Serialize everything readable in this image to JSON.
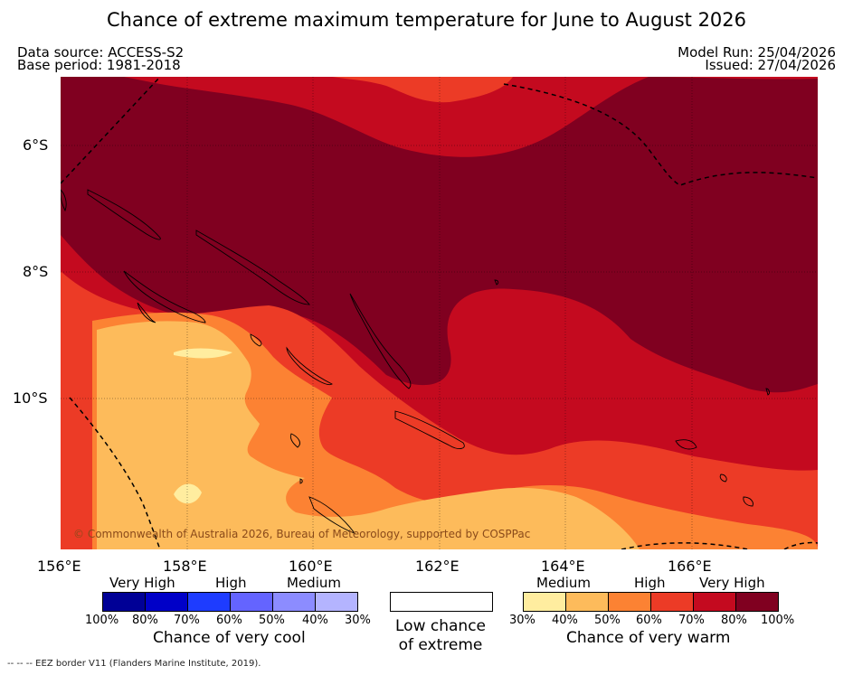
{
  "title": "Chance of extreme maximum temperature for June to August 2026",
  "header": {
    "data_source": "Data source: ACCESS-S2",
    "base_period": "Base period: 1981-2018",
    "model_run": "Model Run: 25/04/2026",
    "issued": "Issued: 27/04/2026"
  },
  "map": {
    "copyright": "© Commonwealth of Australia 2026, Bureau of Meteorology, supported by COSPPac",
    "lat_labels": [
      "6°S",
      "8°S",
      "10°S"
    ],
    "lon_labels": [
      "156°E",
      "158°E",
      "160°E",
      "162°E",
      "164°E",
      "166°E"
    ],
    "category_colors": {
      "30_40": "#ffed9f",
      "40_50": "#fdbb5b",
      "50_60": "#fc8233",
      "60_70": "#ec3b26",
      "70_80": "#c40a1f",
      "80_100": "#800020"
    },
    "land_outline_color": "#000000",
    "eez_color": "#000000"
  },
  "legend": {
    "cool": {
      "groups": [
        "Very High",
        "High",
        "Medium"
      ],
      "ticks": [
        "100%",
        "80%",
        "70%",
        "60%",
        "50%",
        "40%",
        "30%"
      ],
      "colors": [
        "#000096",
        "#0000c8",
        "#1e3cff",
        "#6464ff",
        "#8c8cff",
        "#b4b4ff"
      ],
      "caption": "Chance of very cool"
    },
    "low": {
      "line1": "Low chance",
      "line2": "of extreme"
    },
    "warm": {
      "groups": [
        "Medium",
        "High",
        "Very High"
      ],
      "ticks": [
        "30%",
        "40%",
        "50%",
        "60%",
        "70%",
        "80%",
        "100%"
      ],
      "colors": [
        "#ffed9f",
        "#fdbb5b",
        "#fc8233",
        "#ec3b26",
        "#c40a1f",
        "#800020"
      ],
      "caption": "Chance of very warm"
    }
  },
  "footer": "--  --  -- EEZ border V11 (Flanders Marine Institute, 2019)."
}
